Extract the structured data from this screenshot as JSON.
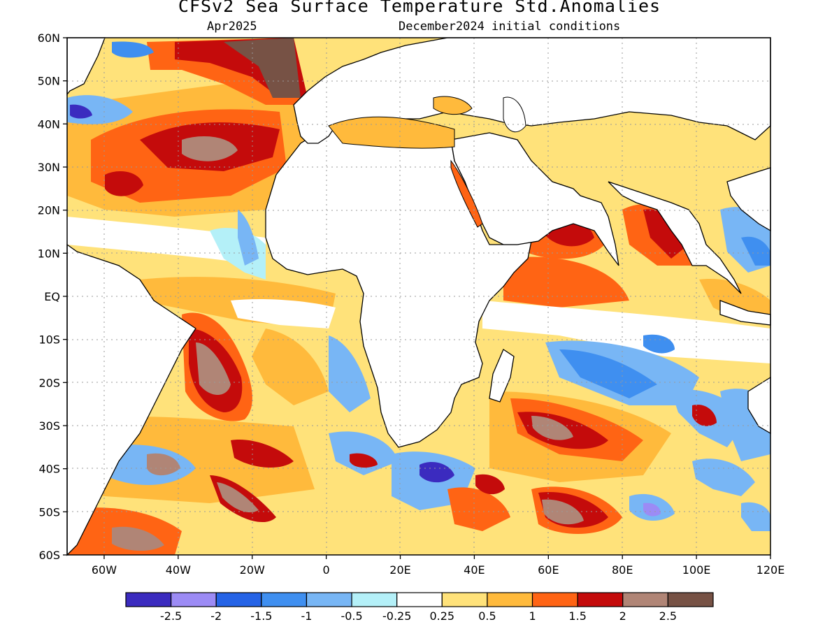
{
  "title": "CFSv2 Sea Surface Temperature Std.Anomalies",
  "subtitle_left": "Apr2025",
  "subtitle_right": "December2024 initial conditions",
  "map": {
    "lon_range": [
      -70,
      120
    ],
    "lat_range": [
      -60,
      60
    ],
    "lat_ticks": [
      "60N",
      "50N",
      "40N",
      "30N",
      "20N",
      "10N",
      "EQ",
      "10S",
      "20S",
      "30S",
      "40S",
      "50S",
      "60S"
    ],
    "lon_ticks": [
      "60W",
      "40W",
      "20W",
      "0",
      "20E",
      "40E",
      "60E",
      "80E",
      "100E",
      "120E"
    ],
    "grid": true
  },
  "legend": {
    "colors": [
      "#3b2bbf",
      "#9c8bf5",
      "#2563e6",
      "#3f8ff0",
      "#78b6f5",
      "#b4f0f8",
      "#ffffff",
      "#ffe27a",
      "#ffba3c",
      "#ff6414",
      "#c40b0b",
      "#b08576",
      "#775245"
    ],
    "labels": [
      "-2.5",
      "-2",
      "-1.5",
      "-1",
      "-0.5",
      "-0.25",
      "0.25",
      "0.5",
      "1",
      "1.5",
      "2",
      "2.5"
    ]
  }
}
